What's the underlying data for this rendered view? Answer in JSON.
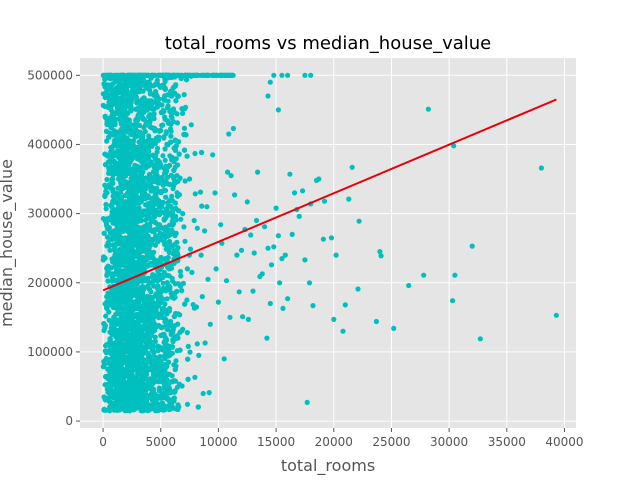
{
  "chart_data": {
    "type": "scatter",
    "title": "total_rooms vs median_house_value",
    "xlabel": "total_rooms",
    "ylabel": "median_house_value",
    "xlim": [
      -2000,
      41000
    ],
    "ylim": [
      -10000,
      525000
    ],
    "xticks": [
      0,
      5000,
      10000,
      15000,
      20000,
      25000,
      30000,
      35000,
      40000
    ],
    "yticks": [
      0,
      100000,
      200000,
      300000,
      400000,
      500000
    ],
    "grid": true,
    "legend": "none",
    "colors": {
      "points": "#00bfbf",
      "fit_line": "#e8000b",
      "plot_background": "#e5e5e5",
      "grid": "#ffffff"
    },
    "series": [
      {
        "kind": "points",
        "x": [
          28200,
          30400,
          38000,
          32000,
          39300,
          32700,
          30500,
          30300,
          27800,
          26500,
          25200,
          24100,
          24000,
          23700,
          22200,
          22100,
          21600,
          21300,
          21000,
          20800,
          20200,
          20000,
          19800,
          19200,
          19100,
          18700,
          18500,
          18200,
          18000,
          17900,
          17700,
          17500,
          17300,
          17000,
          16800,
          16600,
          16400,
          16200,
          16000,
          15800,
          15600,
          15500,
          15300,
          15200,
          15000,
          14800,
          14600,
          14500,
          14300,
          14200,
          14000,
          13800,
          13600,
          13400,
          13300,
          13100,
          13000,
          12800,
          12600,
          12500,
          12300,
          12100,
          12000,
          11800,
          11600,
          11400,
          11300,
          11100,
          11000,
          10800,
          10700,
          10500,
          10300,
          10200,
          10000,
          9800,
          9700,
          9500,
          9300,
          9100,
          9000,
          8800,
          8600,
          8500,
          8300,
          8100,
          7900,
          7700,
          7500,
          7300,
          7100,
          6900,
          6700,
          6500,
          6300,
          6100,
          5900,
          5700,
          5500,
          5300
        ],
        "y": [
          451000,
          398000,
          366000,
          253000,
          153000,
          119000,
          211000,
          174000,
          211000,
          196000,
          134000,
          239000,
          245000,
          144000,
          289000,
          191000,
          367000,
          321000,
          168000,
          130000,
          240000,
          147000,
          265000,
          318000,
          263000,
          350000,
          348000,
          167000,
          314000,
          200000,
          27000,
          233000,
          333000,
          296000,
          306000,
          330000,
          270000,
          357000,
          177000,
          240000,
          163000,
          235000,
          200000,
          268000,
          308000,
          252000,
          226000,
          170000,
          250000,
          120000,
          281000,
          213000,
          209000,
          360000,
          290000,
          243000,
          188000,
          269000,
          147000,
          317000,
          277000,
          151000,
          247000,
          187000,
          240000,
          327000,
          423000,
          355000,
          150000,
          360000,
          203000,
          90000,
          257000,
          284000,
          172000,
          220000,
          330000,
          385000,
          140000,
          205000,
          310000,
          275000,
          180000,
          240000,
          95000,
          165000,
          290000,
          215000,
          350000,
          128000,
          260000,
          300000,
          195000,
          155000,
          235000,
          285000,
          185000,
          250000,
          140000,
          215000
        ]
      },
      {
        "kind": "dense_band",
        "description_values": {
          "x_range": [
            0,
            11300
          ],
          "y_range": [
            15000,
            500001
          ],
          "cap_y": 500001
        }
      },
      {
        "kind": "fit_line",
        "x": [
          0,
          39300
        ],
        "y": [
          189000,
          465000
        ]
      }
    ]
  }
}
